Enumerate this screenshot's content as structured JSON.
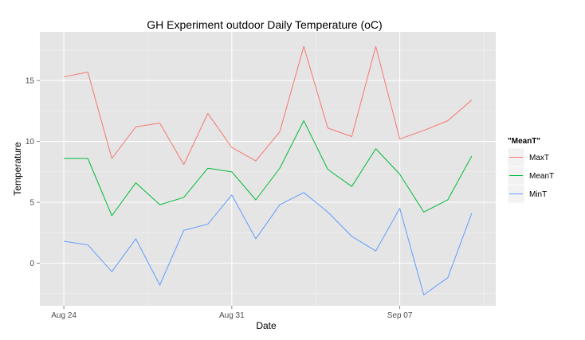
{
  "chart_data": {
    "type": "line",
    "title": "GH Experiment outdoor Daily Temperature (oC)",
    "xlabel": "Date",
    "ylabel": "Temperature",
    "x": [
      "2013-08-24",
      "2013-08-25",
      "2013-08-26",
      "2013-08-27",
      "2013-08-28",
      "2013-08-29",
      "2013-08-30",
      "2013-08-31",
      "2013-09-01",
      "2013-09-02",
      "2013-09-03",
      "2013-09-04",
      "2013-09-05",
      "2013-09-06",
      "2013-09-07",
      "2013-09-08",
      "2013-09-09",
      "2013-09-10"
    ],
    "x_ticks": [
      {
        "date": "2013-08-24",
        "label": "Aug 24"
      },
      {
        "date": "2013-08-31",
        "label": "Aug 31"
      },
      {
        "date": "2013-09-07",
        "label": "Sep 07"
      }
    ],
    "xlim": [
      "2013-08-23",
      "2013-09-11"
    ],
    "y_ticks": [
      0,
      5,
      10,
      15
    ],
    "ylim": [
      -3.5,
      19
    ],
    "grid": true,
    "legend_title": "\"MeanT\"",
    "legend_position": "right",
    "series": [
      {
        "name": "MaxT",
        "color": "#f8766d",
        "values": [
          15.3,
          15.7,
          8.6,
          11.2,
          11.5,
          8.1,
          12.3,
          9.5,
          8.4,
          10.8,
          17.8,
          11.1,
          10.4,
          17.8,
          10.2,
          10.9,
          11.7,
          13.4
        ]
      },
      {
        "name": "MeanT",
        "color": "#00ba38",
        "values": [
          8.6,
          8.6,
          3.9,
          6.6,
          4.8,
          5.4,
          7.8,
          7.5,
          5.2,
          7.8,
          11.7,
          7.7,
          6.3,
          9.4,
          7.3,
          4.2,
          5.2,
          8.8
        ]
      },
      {
        "name": "MinT",
        "color": "#619cff",
        "values": [
          1.8,
          1.5,
          -0.7,
          2.0,
          -1.8,
          2.7,
          3.2,
          5.6,
          2.0,
          4.8,
          5.8,
          4.2,
          2.2,
          1.0,
          4.5,
          -2.6,
          -1.2,
          4.1
        ]
      }
    ]
  }
}
